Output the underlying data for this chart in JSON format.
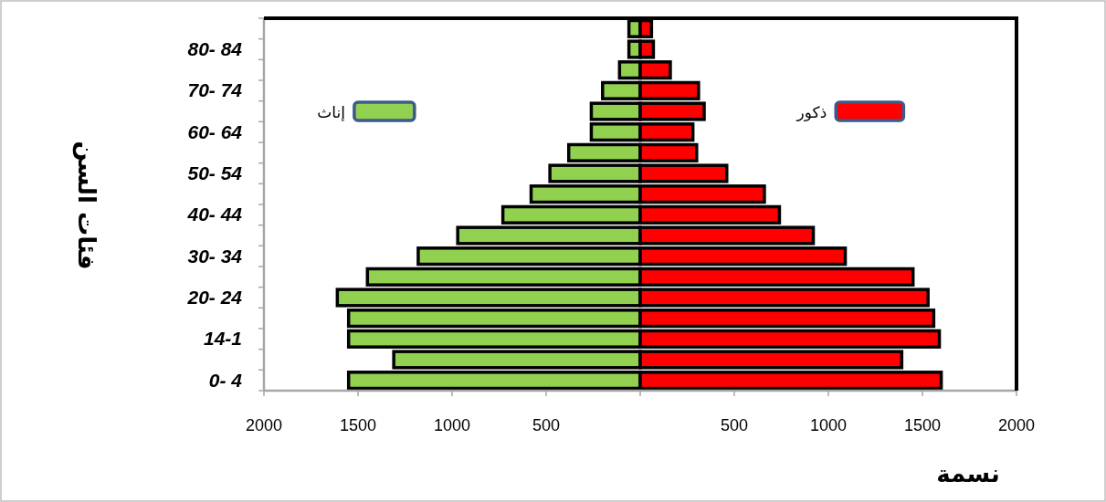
{
  "chart_data": {
    "type": "bar",
    "orientation": "horizontal",
    "stacked": true,
    "xlabel": "نسمة",
    "ylabel": "فئات السن",
    "categories": [
      null,
      "80- 84",
      null,
      "70- 74",
      null,
      "60- 64",
      null,
      "50- 54",
      null,
      "40- 44",
      null,
      "30- 34",
      null,
      "20- 24",
      null,
      "14-1",
      null,
      "0- 4"
    ],
    "series": [
      {
        "name": "إناث",
        "color": "#92d050",
        "values": [
          -60,
          -60,
          -110,
          -200,
          -260,
          -260,
          -380,
          -480,
          -580,
          -730,
          -970,
          -1180,
          -1450,
          -1610,
          -1550,
          -1550,
          -1310,
          -1550
        ]
      },
      {
        "name": "ذكور",
        "color": "#ff0000",
        "values": [
          60,
          70,
          160,
          310,
          340,
          280,
          300,
          460,
          660,
          740,
          920,
          1090,
          1450,
          1530,
          1560,
          1590,
          1390,
          1600
        ]
      }
    ],
    "xlim": [
      -2000,
      2000
    ],
    "xticks": [
      {
        "value": -2000,
        "label": "2000"
      },
      {
        "value": -1500,
        "label": "1500"
      },
      {
        "value": -1000,
        "label": "1000"
      },
      {
        "value": -500,
        "label": "500"
      },
      {
        "value": 0,
        "label": null
      },
      500,
      1000,
      1500,
      2000
    ],
    "legend": "top"
  }
}
